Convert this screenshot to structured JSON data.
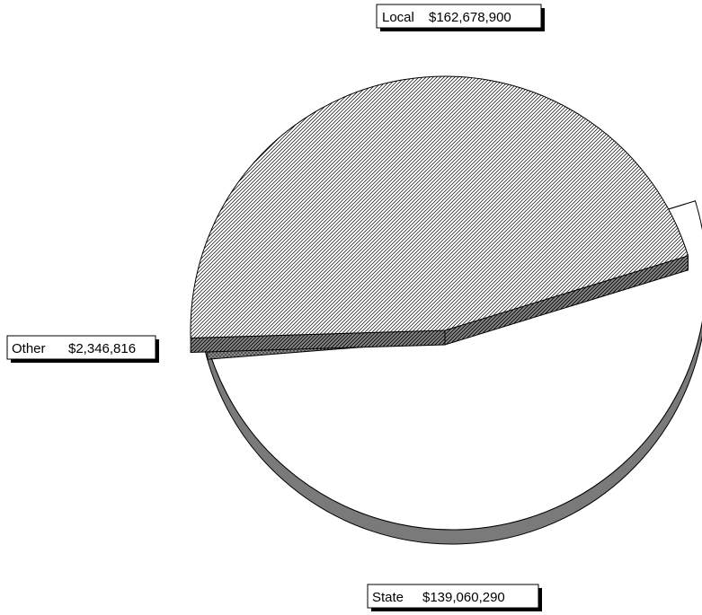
{
  "chart_data": {
    "type": "pie",
    "variant": "3d-exploded",
    "title": "",
    "slices": [
      {
        "name": "Local",
        "value": 162678900,
        "display": "$162,678,900",
        "pattern": "blank"
      },
      {
        "name": "State",
        "value": 139060290,
        "display": "$139,060,290",
        "pattern": "diagonal-hatch"
      },
      {
        "name": "Other",
        "value": 2346816,
        "display": "$2,346,816",
        "pattern": "dotted"
      }
    ],
    "legend": "none",
    "colors": {
      "face": "#ffffff",
      "side": "#7a7a7a",
      "outline": "#000000",
      "label_shadow": "#000000"
    }
  }
}
